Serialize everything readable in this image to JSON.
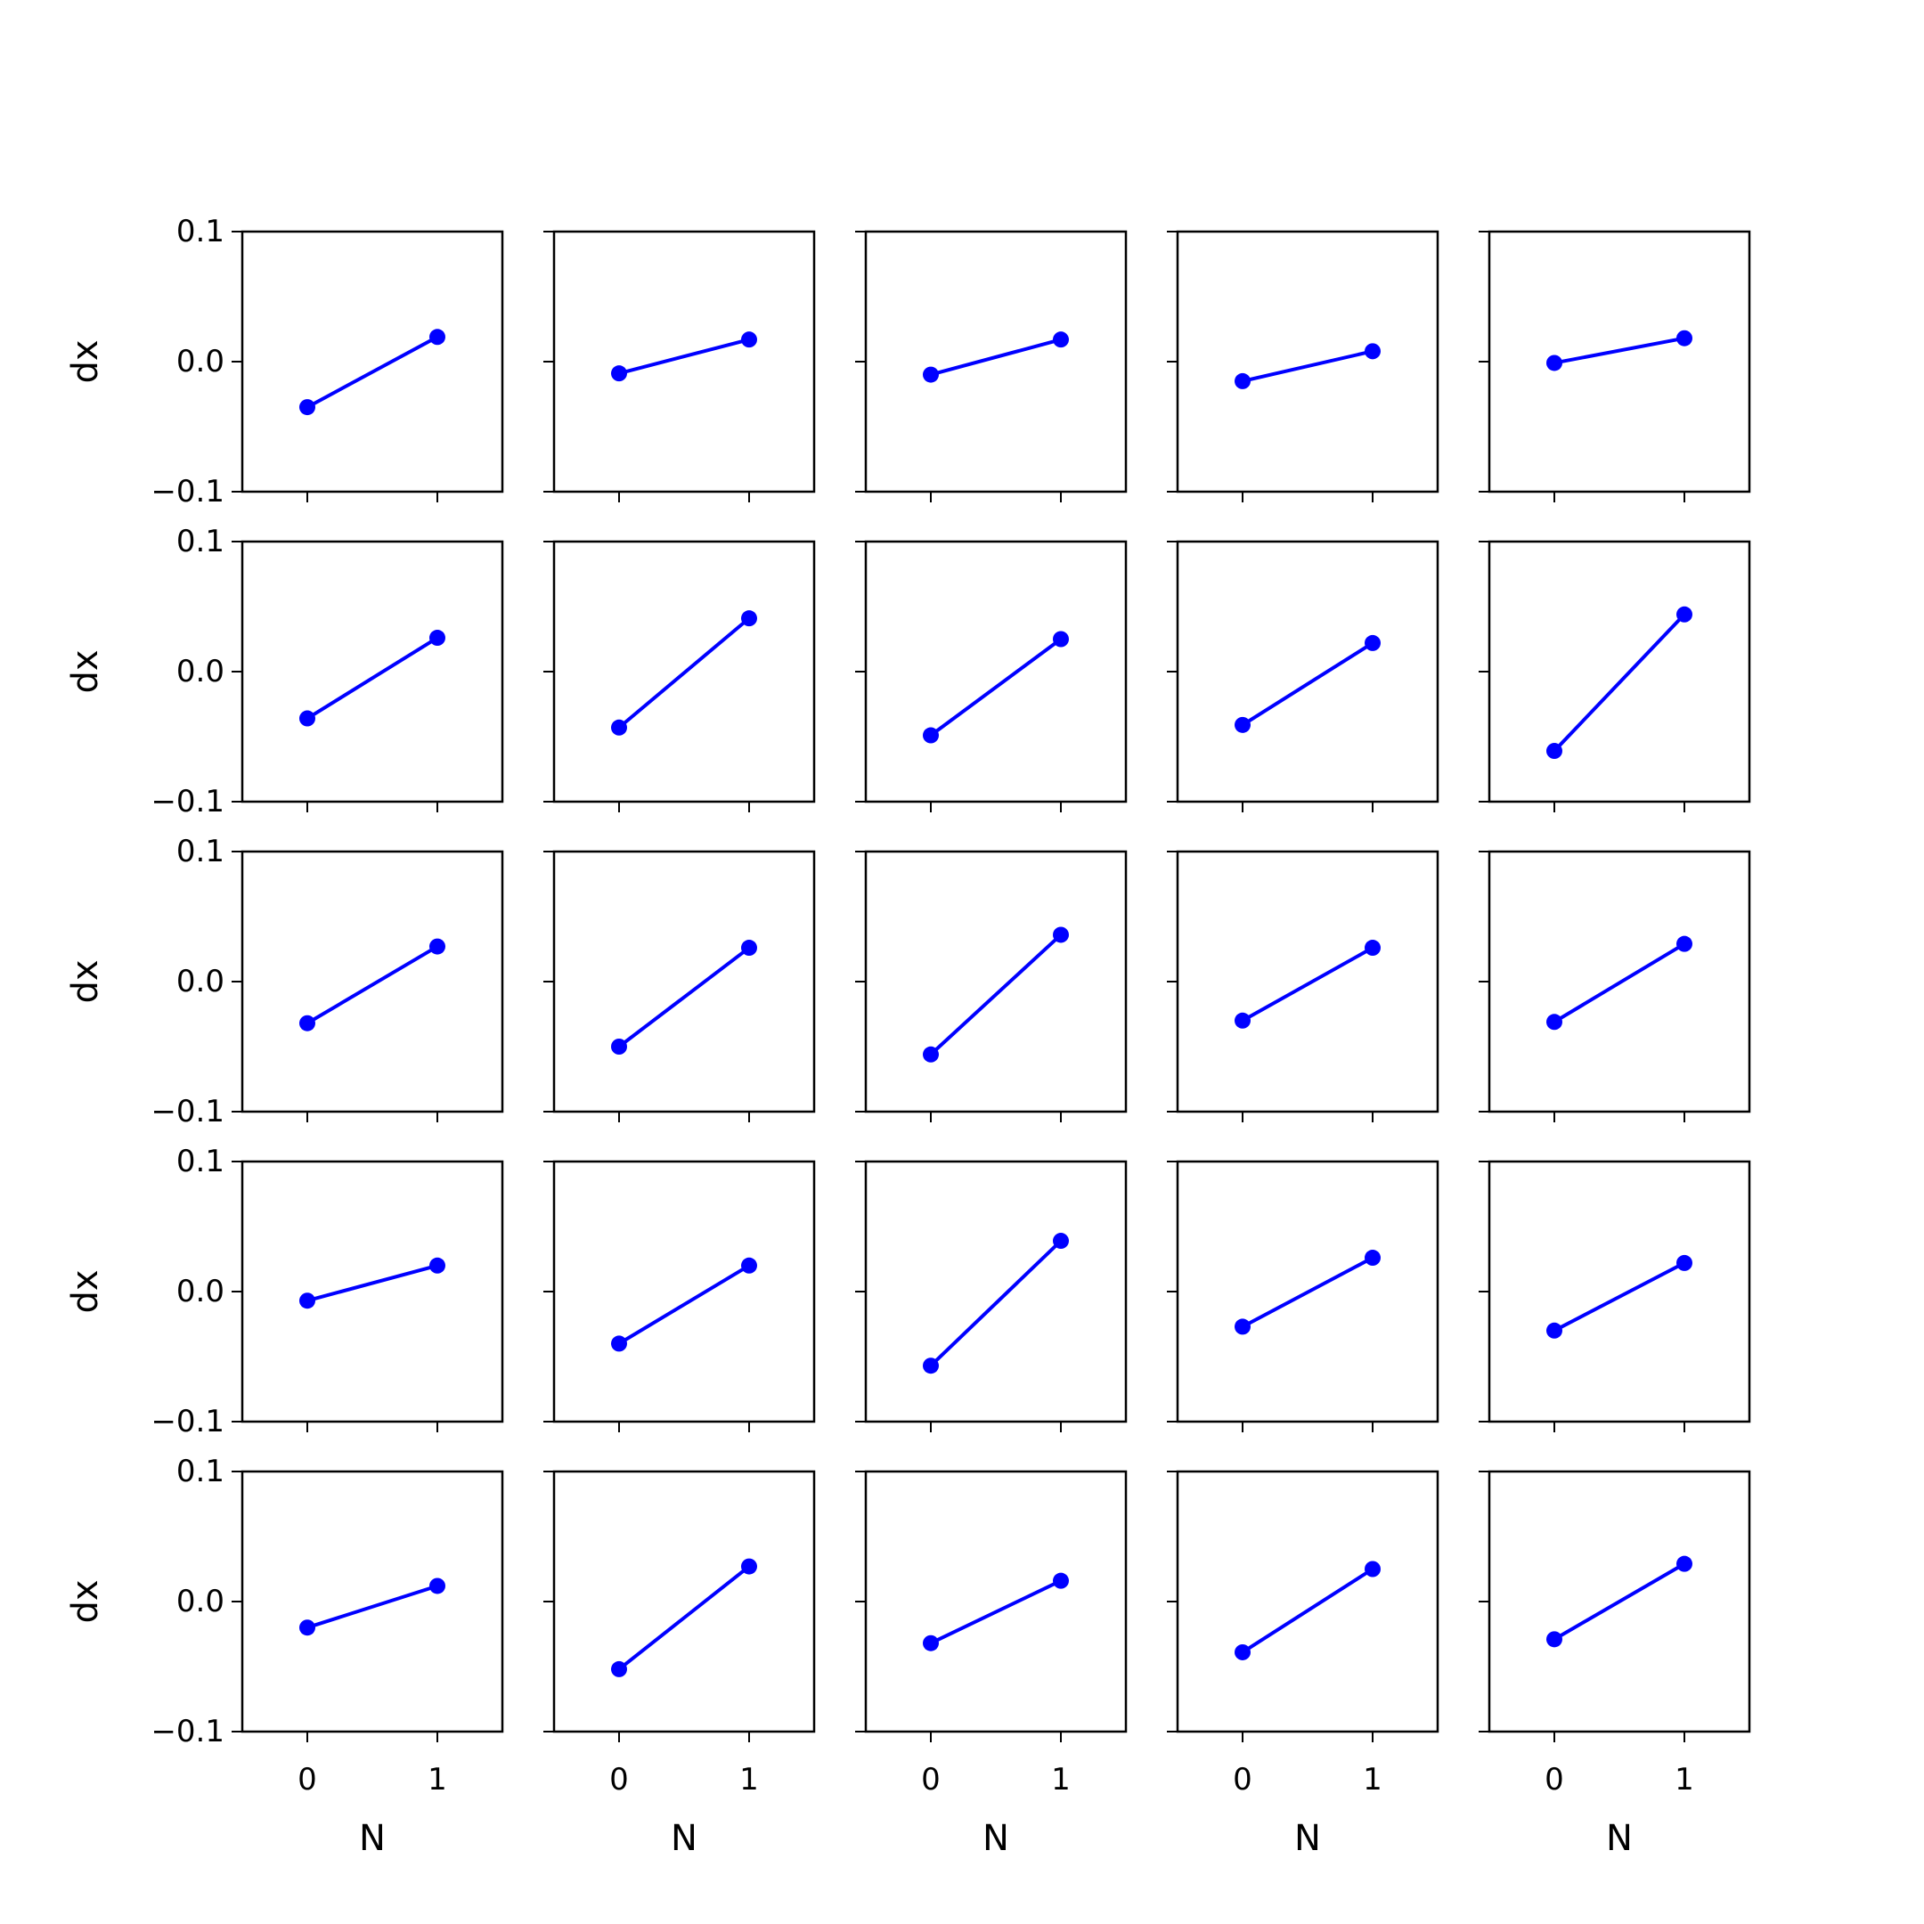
{
  "figure": {
    "rows": 5,
    "cols": 5,
    "line_color": "#0000ff",
    "axis_color": "#000000",
    "background": "#ffffff"
  },
  "axes": {
    "xlabel": "N",
    "ylabel": "dx",
    "xticks": [
      0,
      1
    ],
    "xtick_labels": [
      "0",
      "1"
    ],
    "yticks": [
      -0.1,
      0.0,
      0.1
    ],
    "ytick_labels": [
      "−0.1",
      "0.0",
      "0.1"
    ],
    "xlim": [
      -0.5,
      1.5
    ],
    "ylim": [
      -0.1,
      0.1
    ]
  },
  "chart_data": [
    {
      "type": "line",
      "x": [
        0,
        1
      ],
      "y": [
        -0.035,
        0.019
      ],
      "xlabel": "",
      "ylabel": "dx",
      "ylim": [
        -0.1,
        0.1
      ],
      "grid": false
    },
    {
      "type": "line",
      "x": [
        0,
        1
      ],
      "y": [
        -0.009,
        0.017
      ],
      "xlabel": "",
      "ylabel": "",
      "ylim": [
        -0.1,
        0.1
      ],
      "grid": false
    },
    {
      "type": "line",
      "x": [
        0,
        1
      ],
      "y": [
        -0.01,
        0.017
      ],
      "xlabel": "",
      "ylabel": "",
      "ylim": [
        -0.1,
        0.1
      ],
      "grid": false
    },
    {
      "type": "line",
      "x": [
        0,
        1
      ],
      "y": [
        -0.015,
        0.008
      ],
      "xlabel": "",
      "ylabel": "",
      "ylim": [
        -0.1,
        0.1
      ],
      "grid": false
    },
    {
      "type": "line",
      "x": [
        0,
        1
      ],
      "y": [
        -0.001,
        0.018
      ],
      "xlabel": "",
      "ylabel": "",
      "ylim": [
        -0.1,
        0.1
      ],
      "grid": false
    },
    {
      "type": "line",
      "x": [
        0,
        1
      ],
      "y": [
        -0.036,
        0.026
      ],
      "xlabel": "",
      "ylabel": "dx",
      "ylim": [
        -0.1,
        0.1
      ],
      "grid": false
    },
    {
      "type": "line",
      "x": [
        0,
        1
      ],
      "y": [
        -0.043,
        0.041
      ],
      "xlabel": "",
      "ylabel": "",
      "ylim": [
        -0.1,
        0.1
      ],
      "grid": false
    },
    {
      "type": "line",
      "x": [
        0,
        1
      ],
      "y": [
        -0.049,
        0.025
      ],
      "xlabel": "",
      "ylabel": "",
      "ylim": [
        -0.1,
        0.1
      ],
      "grid": false
    },
    {
      "type": "line",
      "x": [
        0,
        1
      ],
      "y": [
        -0.041,
        0.022
      ],
      "xlabel": "",
      "ylabel": "",
      "ylim": [
        -0.1,
        0.1
      ],
      "grid": false
    },
    {
      "type": "line",
      "x": [
        0,
        1
      ],
      "y": [
        -0.061,
        0.044
      ],
      "xlabel": "",
      "ylabel": "",
      "ylim": [
        -0.1,
        0.1
      ],
      "grid": false
    },
    {
      "type": "line",
      "x": [
        0,
        1
      ],
      "y": [
        -0.032,
        0.027
      ],
      "xlabel": "",
      "ylabel": "dx",
      "ylim": [
        -0.1,
        0.1
      ],
      "grid": false
    },
    {
      "type": "line",
      "x": [
        0,
        1
      ],
      "y": [
        -0.05,
        0.026
      ],
      "xlabel": "",
      "ylabel": "",
      "ylim": [
        -0.1,
        0.1
      ],
      "grid": false
    },
    {
      "type": "line",
      "x": [
        0,
        1
      ],
      "y": [
        -0.056,
        0.036
      ],
      "xlabel": "",
      "ylabel": "",
      "ylim": [
        -0.1,
        0.1
      ],
      "grid": false
    },
    {
      "type": "line",
      "x": [
        0,
        1
      ],
      "y": [
        -0.03,
        0.026
      ],
      "xlabel": "",
      "ylabel": "",
      "ylim": [
        -0.1,
        0.1
      ],
      "grid": false
    },
    {
      "type": "line",
      "x": [
        0,
        1
      ],
      "y": [
        -0.031,
        0.029
      ],
      "xlabel": "",
      "ylabel": "",
      "ylim": [
        -0.1,
        0.1
      ],
      "grid": false
    },
    {
      "type": "line",
      "x": [
        0,
        1
      ],
      "y": [
        -0.007,
        0.02
      ],
      "xlabel": "",
      "ylabel": "dx",
      "ylim": [
        -0.1,
        0.1
      ],
      "grid": false
    },
    {
      "type": "line",
      "x": [
        0,
        1
      ],
      "y": [
        -0.04,
        0.02
      ],
      "xlabel": "",
      "ylabel": "",
      "ylim": [
        -0.1,
        0.1
      ],
      "grid": false
    },
    {
      "type": "line",
      "x": [
        0,
        1
      ],
      "y": [
        -0.057,
        0.039
      ],
      "xlabel": "",
      "ylabel": "",
      "ylim": [
        -0.1,
        0.1
      ],
      "grid": false
    },
    {
      "type": "line",
      "x": [
        0,
        1
      ],
      "y": [
        -0.027,
        0.026
      ],
      "xlabel": "",
      "ylabel": "",
      "ylim": [
        -0.1,
        0.1
      ],
      "grid": false
    },
    {
      "type": "line",
      "x": [
        0,
        1
      ],
      "y": [
        -0.03,
        0.022
      ],
      "xlabel": "",
      "ylabel": "",
      "ylim": [
        -0.1,
        0.1
      ],
      "grid": false
    },
    {
      "type": "line",
      "x": [
        0,
        1
      ],
      "y": [
        -0.02,
        0.012
      ],
      "xlabel": "N",
      "ylabel": "dx",
      "ylim": [
        -0.1,
        0.1
      ],
      "grid": false
    },
    {
      "type": "line",
      "x": [
        0,
        1
      ],
      "y": [
        -0.052,
        0.027
      ],
      "xlabel": "N",
      "ylabel": "",
      "ylim": [
        -0.1,
        0.1
      ],
      "grid": false
    },
    {
      "type": "line",
      "x": [
        0,
        1
      ],
      "y": [
        -0.032,
        0.016
      ],
      "xlabel": "N",
      "ylabel": "",
      "ylim": [
        -0.1,
        0.1
      ],
      "grid": false
    },
    {
      "type": "line",
      "x": [
        0,
        1
      ],
      "y": [
        -0.039,
        0.025
      ],
      "xlabel": "N",
      "ylabel": "",
      "ylim": [
        -0.1,
        0.1
      ],
      "grid": false
    },
    {
      "type": "line",
      "x": [
        0,
        1
      ],
      "y": [
        -0.029,
        0.029
      ],
      "xlabel": "N",
      "ylabel": "",
      "ylim": [
        -0.1,
        0.1
      ],
      "grid": false
    }
  ]
}
